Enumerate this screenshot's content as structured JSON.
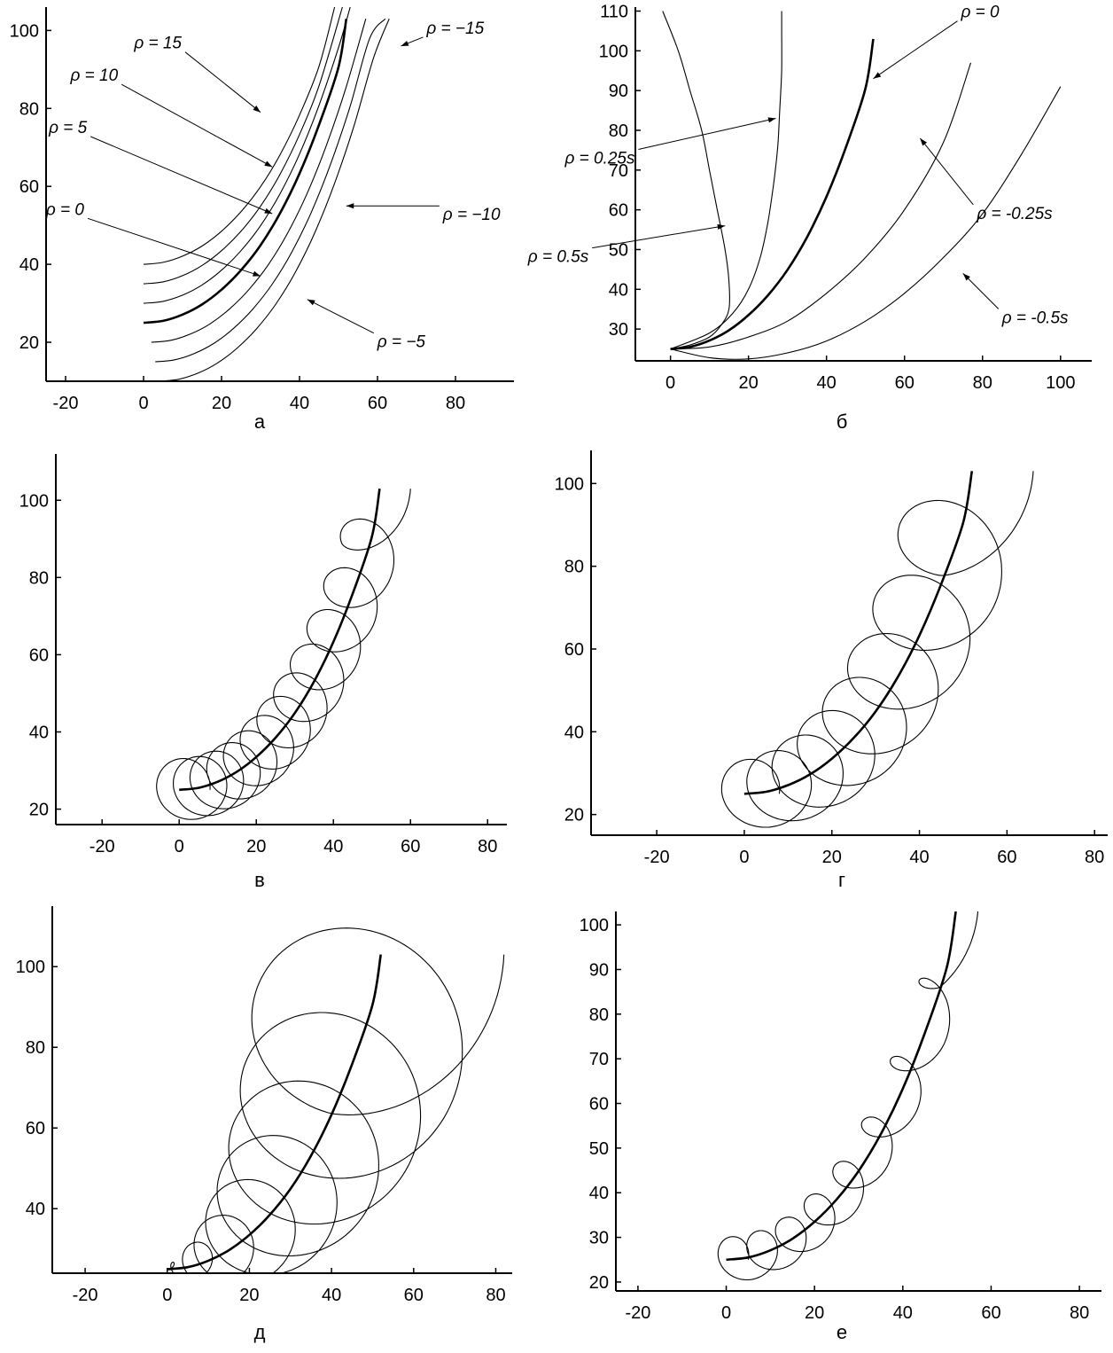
{
  "figure": {
    "panel_labels": [
      "а",
      "б",
      "в",
      "г",
      "д",
      "е"
    ]
  },
  "chart_data": [
    {
      "panel": "а",
      "type": "line",
      "xlim": [
        -25,
        95
      ],
      "ylim": [
        10,
        106
      ],
      "xticks": [
        -20,
        0,
        20,
        40,
        60,
        80
      ],
      "yticks": [
        20,
        40,
        60,
        80,
        100
      ],
      "grid": false,
      "series": [
        {
          "name": "ρ=15",
          "points": [
            [
              0,
              40
            ],
            [
              5,
              40.5
            ],
            [
              10,
              42.1
            ],
            [
              15,
              44.7
            ],
            [
              20,
              48.5
            ],
            [
              25,
              53.5
            ],
            [
              30,
              59.9
            ],
            [
              35,
              68.1
            ],
            [
              40,
              78.3
            ],
            [
              45,
              90.8
            ],
            [
              49,
              106
            ]
          ]
        },
        {
          "name": "ρ=10",
          "points": [
            [
              0,
              35
            ],
            [
              5,
              35.5
            ],
            [
              10,
              37.1
            ],
            [
              15,
              39.7
            ],
            [
              20,
              43.5
            ],
            [
              25,
              48.5
            ],
            [
              30,
              54.9
            ],
            [
              35,
              63.1
            ],
            [
              40,
              73.3
            ],
            [
              45,
              85.8
            ],
            [
              51,
              106
            ]
          ]
        },
        {
          "name": "ρ=5",
          "points": [
            [
              0,
              30
            ],
            [
              5,
              30.5
            ],
            [
              10,
              32.1
            ],
            [
              15,
              34.7
            ],
            [
              20,
              38.5
            ],
            [
              25,
              43.5
            ],
            [
              30,
              49.9
            ],
            [
              35,
              58.1
            ],
            [
              40,
              68.3
            ],
            [
              45,
              80.8
            ],
            [
              50,
              95.6
            ],
            [
              53,
              106
            ]
          ]
        },
        {
          "name": "ρ=0",
          "points": [
            [
              0,
              25
            ],
            [
              5,
              25.5
            ],
            [
              10,
              27.1
            ],
            [
              15,
              29.7
            ],
            [
              20,
              33.5
            ],
            [
              25,
              38.5
            ],
            [
              30,
              44.9
            ],
            [
              35,
              53.1
            ],
            [
              40,
              63.3
            ],
            [
              45,
              75.8
            ],
            [
              50,
              90.6
            ],
            [
              52,
              103
            ]
          ]
        },
        {
          "name": "ρ=−5",
          "points": [
            [
              2,
              20
            ],
            [
              7,
              20.5
            ],
            [
              12,
              22.1
            ],
            [
              17,
              24.7
            ],
            [
              22,
              28.5
            ],
            [
              27,
              33.5
            ],
            [
              32,
              39.9
            ],
            [
              37,
              48.1
            ],
            [
              42,
              58.3
            ],
            [
              47,
              70.8
            ],
            [
              52,
              85.6
            ],
            [
              57,
              103
            ]
          ]
        },
        {
          "name": "ρ=−10",
          "points": [
            [
              3,
              15
            ],
            [
              8,
              15.5
            ],
            [
              13,
              17.1
            ],
            [
              18,
              19.7
            ],
            [
              23,
              23.5
            ],
            [
              28,
              28.5
            ],
            [
              33,
              34.9
            ],
            [
              38,
              43.1
            ],
            [
              43,
              53.3
            ],
            [
              48,
              65.8
            ],
            [
              53,
              80.6
            ],
            [
              58,
              98
            ],
            [
              62,
              103
            ]
          ]
        },
        {
          "name": "ρ=−15",
          "points": [
            [
              4,
              10
            ],
            [
              9,
              10.5
            ],
            [
              14,
              12.1
            ],
            [
              19,
              14.7
            ],
            [
              24,
              18.5
            ],
            [
              29,
              23.5
            ],
            [
              34,
              29.9
            ],
            [
              39,
              38.1
            ],
            [
              44,
              48.3
            ],
            [
              49,
              60.8
            ],
            [
              54,
              75.6
            ],
            [
              59,
              93
            ],
            [
              63,
              103
            ]
          ]
        }
      ],
      "annotations": [
        {
          "text": "ρ = 15",
          "x": 30,
          "y": 79
        },
        {
          "text": "ρ = 10",
          "x": 33,
          "y": 65
        },
        {
          "text": "ρ = 5",
          "x": 33,
          "y": 53
        },
        {
          "text": "ρ = 0",
          "x": 30,
          "y": 37
        },
        {
          "text": "ρ = −5",
          "x": 42,
          "y": 31
        },
        {
          "text": "ρ = −10",
          "x": 52,
          "y": 55
        },
        {
          "text": "ρ = −15",
          "x": 66,
          "y": 96
        }
      ]
    },
    {
      "panel": "б",
      "type": "line",
      "xlim": [
        -9,
        108
      ],
      "ylim": [
        22,
        111
      ],
      "xticks": [
        0,
        20,
        40,
        60,
        80,
        100
      ],
      "yticks": [
        30,
        40,
        50,
        60,
        70,
        80,
        90,
        100,
        110
      ],
      "grid": false,
      "series": [
        {
          "name": "ρ=0.5s",
          "points": [
            [
              0,
              25
            ],
            [
              5,
              26
            ],
            [
              10,
              28
            ],
            [
              13,
              31
            ],
            [
              15,
              35
            ],
            [
              15,
              42
            ],
            [
              14,
              50
            ],
            [
              12,
              60
            ],
            [
              10,
              70
            ],
            [
              8,
              80
            ],
            [
              5,
              90
            ],
            [
              2,
              100
            ],
            [
              -2,
              110
            ]
          ]
        },
        {
          "name": "ρ=0.25s",
          "points": [
            [
              0,
              25
            ],
            [
              10,
              29
            ],
            [
              16,
              34
            ],
            [
              20,
              40
            ],
            [
              23,
              48
            ],
            [
              25,
              57
            ],
            [
              26.5,
              67
            ],
            [
              27.5,
              76
            ],
            [
              28,
              85
            ],
            [
              28.5,
              95
            ],
            [
              28.5,
              105
            ],
            [
              28.5,
              110
            ]
          ]
        },
        {
          "name": "ρ=0",
          "points": [
            [
              0,
              25
            ],
            [
              5,
              25.5
            ],
            [
              10,
              27.1
            ],
            [
              15,
              29.7
            ],
            [
              20,
              33.5
            ],
            [
              25,
              38.5
            ],
            [
              30,
              44.9
            ],
            [
              35,
              53.1
            ],
            [
              40,
              63.3
            ],
            [
              45,
              75.8
            ],
            [
              50,
              90.6
            ],
            [
              52,
              103
            ]
          ]
        },
        {
          "name": "ρ=-0.25s",
          "points": [
            [
              0,
              25
            ],
            [
              10,
              25.5
            ],
            [
              20,
              28
            ],
            [
              30,
              32
            ],
            [
              40,
              39
            ],
            [
              50,
              48
            ],
            [
              60,
              60
            ],
            [
              70,
              77
            ],
            [
              77,
              97
            ]
          ]
        },
        {
          "name": "ρ=-0.5s",
          "points": [
            [
              0,
              25
            ],
            [
              10,
              22.8
            ],
            [
              20,
              22.5
            ],
            [
              30,
              24
            ],
            [
              40,
              27
            ],
            [
              50,
              32
            ],
            [
              60,
              39
            ],
            [
              70,
              48
            ],
            [
              80,
              59
            ],
            [
              90,
              74
            ],
            [
              100,
              91
            ]
          ]
        }
      ],
      "annotations": [
        {
          "text": "ρ = 0",
          "x": 52,
          "y": 93
        },
        {
          "text": "ρ = 0.25s",
          "x": 27,
          "y": 83
        },
        {
          "text": "ρ = 0.5s",
          "x": 14,
          "y": 56
        },
        {
          "text": "ρ = -0.25s",
          "x": 64,
          "y": 78
        },
        {
          "text": "ρ = -0.5s",
          "x": 75,
          "y": 44
        }
      ]
    },
    {
      "panel": "в",
      "type": "line",
      "xlim": [
        -32,
        85
      ],
      "ylim": [
        16,
        112
      ],
      "xticks": [
        -20,
        0,
        20,
        40,
        60,
        80
      ],
      "yticks": [
        20,
        40,
        60,
        80,
        100
      ],
      "grid": false,
      "trajectory": {
        "cx": [
          4,
          14,
          18,
          25,
          31,
          36,
          40,
          44,
          48,
          48
        ],
        "cy": [
          25.2,
          28,
          32.2,
          38.2,
          45.3,
          54.1,
          64.7,
          77.3,
          92,
          103
        ],
        "radius": 8,
        "period": 12
      },
      "series": [
        {
          "name": "ρ=0",
          "points": [
            [
              0,
              25
            ],
            [
              5,
              25.5
            ],
            [
              10,
              27.1
            ],
            [
              15,
              29.7
            ],
            [
              20,
              33.5
            ],
            [
              25,
              38.5
            ],
            [
              30,
              44.9
            ],
            [
              35,
              53.1
            ],
            [
              40,
              63.3
            ],
            [
              45,
              75.8
            ],
            [
              50,
              90.6
            ],
            [
              52,
              103
            ]
          ]
        }
      ]
    },
    {
      "panel": "г",
      "type": "line",
      "xlim": [
        -35,
        83
      ],
      "ylim": [
        15,
        108
      ],
      "xticks": [
        -20,
        0,
        20,
        40,
        60,
        80
      ],
      "yticks": [
        20,
        40,
        60,
        80,
        100
      ],
      "grid": false,
      "trajectory": {
        "radius_growth": [
          8,
          14
        ],
        "period": 8
      },
      "series": [
        {
          "name": "ρ=0",
          "points": [
            [
              0,
              25
            ],
            [
              5,
              25.5
            ],
            [
              10,
              27.1
            ],
            [
              15,
              29.7
            ],
            [
              20,
              33.5
            ],
            [
              25,
              38.5
            ],
            [
              30,
              44.9
            ],
            [
              35,
              53.1
            ],
            [
              40,
              63.3
            ],
            [
              45,
              75.8
            ],
            [
              50,
              90.6
            ],
            [
              52,
              103
            ]
          ]
        }
      ]
    },
    {
      "panel": "д",
      "type": "line",
      "xlim": [
        -28,
        84
      ],
      "ylim": [
        24,
        115
      ],
      "xticks": [
        -20,
        0,
        20,
        40,
        60,
        80
      ],
      "yticks": [
        40,
        60,
        80,
        100
      ],
      "grid": false,
      "trajectory": {
        "radius_growth": [
          0.5,
          30
        ],
        "period": 8
      },
      "series": [
        {
          "name": "ρ=0",
          "points": [
            [
              0,
              25
            ],
            [
              5,
              25.5
            ],
            [
              10,
              27.1
            ],
            [
              15,
              29.7
            ],
            [
              20,
              33.5
            ],
            [
              25,
              38.5
            ],
            [
              30,
              44.9
            ],
            [
              35,
              53.1
            ],
            [
              40,
              63.3
            ],
            [
              45,
              75.8
            ],
            [
              50,
              90.6
            ],
            [
              52,
              103
            ]
          ]
        }
      ]
    },
    {
      "panel": "е",
      "type": "line",
      "xlim": [
        -25,
        85
      ],
      "ylim": [
        18,
        103
      ],
      "xticks": [
        -20,
        0,
        20,
        40,
        60,
        80
      ],
      "yticks": [
        20,
        30,
        40,
        50,
        60,
        70,
        80,
        90,
        100
      ],
      "grid": false,
      "trajectory": {
        "radius": 5,
        "period": 8
      },
      "series": [
        {
          "name": "ρ=0",
          "points": [
            [
              0,
              25
            ],
            [
              5,
              25.5
            ],
            [
              10,
              27.1
            ],
            [
              15,
              29.7
            ],
            [
              20,
              33.5
            ],
            [
              25,
              38.5
            ],
            [
              30,
              44.9
            ],
            [
              35,
              53.1
            ],
            [
              40,
              63.3
            ],
            [
              45,
              75.8
            ],
            [
              50,
              90.6
            ],
            [
              52,
              103
            ]
          ]
        }
      ]
    }
  ]
}
